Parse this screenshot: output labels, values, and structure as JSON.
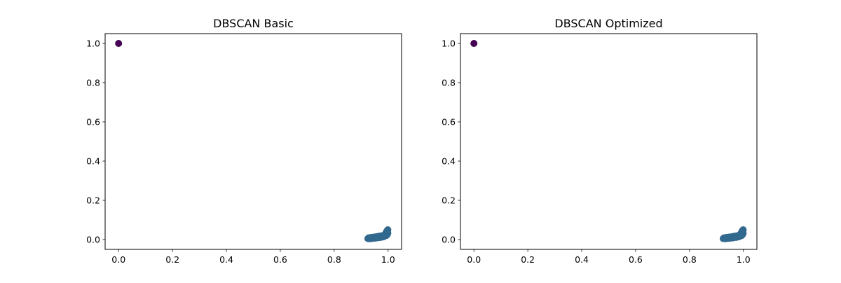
{
  "chart_data": [
    {
      "type": "scatter",
      "title": "DBSCAN Basic",
      "xlabel": "",
      "ylabel": "",
      "xlim": [
        -0.05,
        1.05
      ],
      "ylim": [
        -0.05,
        1.05
      ],
      "xticks": [
        0.0,
        0.2,
        0.4,
        0.6,
        0.8,
        1.0
      ],
      "yticks": [
        0.0,
        0.2,
        0.4,
        0.6,
        0.8,
        1.0
      ],
      "xtick_labels": [
        "0.0",
        "0.2",
        "0.4",
        "0.6",
        "0.8",
        "1.0"
      ],
      "ytick_labels": [
        "0.0",
        "0.2",
        "0.4",
        "0.6",
        "0.8",
        "1.0"
      ],
      "grid": false,
      "series": [
        {
          "color": "#440154",
          "points": [
            [
              0.0,
              1.0
            ]
          ]
        },
        {
          "color": "#31688e",
          "points": [
            [
              0.925,
              0.005
            ],
            [
              0.93,
              0.008
            ],
            [
              0.935,
              0.006
            ],
            [
              0.94,
              0.01
            ],
            [
              0.945,
              0.008
            ],
            [
              0.95,
              0.012
            ],
            [
              0.955,
              0.01
            ],
            [
              0.96,
              0.014
            ],
            [
              0.965,
              0.012
            ],
            [
              0.97,
              0.016
            ],
            [
              0.975,
              0.015
            ],
            [
              0.98,
              0.02
            ],
            [
              0.985,
              0.018
            ],
            [
              0.99,
              0.025
            ],
            [
              0.995,
              0.03
            ],
            [
              0.998,
              0.04
            ],
            [
              0.999,
              0.05
            ],
            [
              0.996,
              0.045
            ],
            [
              0.992,
              0.035
            ],
            [
              0.988,
              0.022
            ],
            [
              0.978,
              0.02
            ],
            [
              0.968,
              0.018
            ],
            [
              0.958,
              0.015
            ],
            [
              0.948,
              0.013
            ],
            [
              0.938,
              0.011
            ],
            [
              0.928,
              0.009
            ],
            [
              0.933,
              0.004
            ],
            [
              0.943,
              0.006
            ],
            [
              0.953,
              0.007
            ],
            [
              0.963,
              0.009
            ],
            [
              0.973,
              0.011
            ],
            [
              0.983,
              0.014
            ],
            [
              0.993,
              0.02
            ],
            [
              0.997,
              0.026
            ],
            [
              0.999,
              0.032
            ]
          ]
        }
      ]
    },
    {
      "type": "scatter",
      "title": "DBSCAN Optimized",
      "xlabel": "",
      "ylabel": "",
      "xlim": [
        -0.05,
        1.05
      ],
      "ylim": [
        -0.05,
        1.05
      ],
      "xticks": [
        0.0,
        0.2,
        0.4,
        0.6,
        0.8,
        1.0
      ],
      "yticks": [
        0.0,
        0.2,
        0.4,
        0.6,
        0.8,
        1.0
      ],
      "xtick_labels": [
        "0.0",
        "0.2",
        "0.4",
        "0.6",
        "0.8",
        "1.0"
      ],
      "ytick_labels": [
        "0.0",
        "0.2",
        "0.4",
        "0.6",
        "0.8",
        "1.0"
      ],
      "grid": false,
      "series": [
        {
          "color": "#440154",
          "points": [
            [
              0.0,
              1.0
            ]
          ]
        },
        {
          "color": "#31688e",
          "points": [
            [
              0.925,
              0.005
            ],
            [
              0.93,
              0.008
            ],
            [
              0.935,
              0.006
            ],
            [
              0.94,
              0.01
            ],
            [
              0.945,
              0.008
            ],
            [
              0.95,
              0.012
            ],
            [
              0.955,
              0.01
            ],
            [
              0.96,
              0.014
            ],
            [
              0.965,
              0.012
            ],
            [
              0.97,
              0.016
            ],
            [
              0.975,
              0.015
            ],
            [
              0.98,
              0.02
            ],
            [
              0.985,
              0.018
            ],
            [
              0.99,
              0.025
            ],
            [
              0.995,
              0.03
            ],
            [
              0.998,
              0.04
            ],
            [
              0.999,
              0.05
            ],
            [
              0.996,
              0.045
            ],
            [
              0.992,
              0.035
            ],
            [
              0.988,
              0.022
            ],
            [
              0.978,
              0.02
            ],
            [
              0.968,
              0.018
            ],
            [
              0.958,
              0.015
            ],
            [
              0.948,
              0.013
            ],
            [
              0.938,
              0.011
            ],
            [
              0.928,
              0.009
            ],
            [
              0.933,
              0.004
            ],
            [
              0.943,
              0.006
            ],
            [
              0.953,
              0.007
            ],
            [
              0.963,
              0.009
            ],
            [
              0.973,
              0.011
            ],
            [
              0.983,
              0.014
            ],
            [
              0.993,
              0.02
            ],
            [
              0.997,
              0.026
            ],
            [
              0.999,
              0.032
            ]
          ]
        }
      ]
    }
  ]
}
